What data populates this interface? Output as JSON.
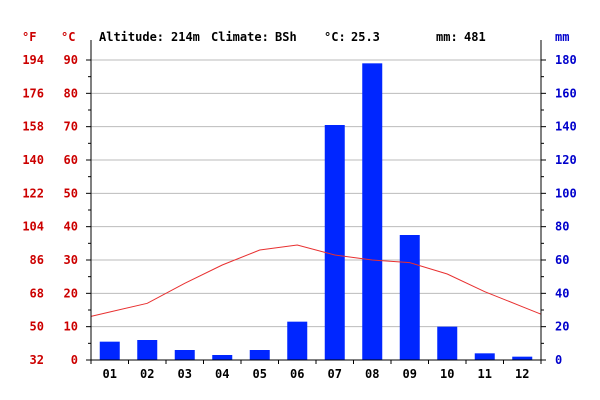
{
  "header": {
    "altitude_label": "Altitude:",
    "altitude_value": "214m",
    "climate_label": "Climate:",
    "climate_value": "BSh",
    "temp_label": "°C:",
    "temp_value": "25.3",
    "precip_label": "mm:",
    "precip_value": "481"
  },
  "colors": {
    "temperature": "#e83030",
    "precipitation": "#0026ff",
    "left_axis": "#cc0000",
    "right_axis": "#0000cc",
    "grid": "#bbbbbb"
  },
  "chart_data": {
    "type": "bar",
    "categories": [
      "01",
      "02",
      "03",
      "04",
      "05",
      "06",
      "07",
      "08",
      "09",
      "10",
      "11",
      "12"
    ],
    "series": [
      {
        "type": "bar",
        "axis": "right",
        "values": [
          11,
          12,
          6,
          3,
          6,
          23,
          141,
          178,
          75,
          20,
          4,
          2
        ]
      },
      {
        "type": "line",
        "axis": "left",
        "values": [
          14.4,
          17,
          23,
          28.5,
          33,
          34.5,
          31.5,
          30,
          29.2,
          25.8,
          20.5,
          16
        ]
      }
    ],
    "left_axis": {
      "unit_f": "°F",
      "unit_c": "°C",
      "ticks_c": [
        "0",
        "10",
        "20",
        "30",
        "40",
        "50",
        "60",
        "70",
        "80",
        "90"
      ],
      "ticks_f": [
        "32",
        "50",
        "68",
        "86",
        "104",
        "122",
        "140",
        "158",
        "176",
        "194"
      ],
      "ylim": [
        0,
        90
      ]
    },
    "right_axis": {
      "unit": "mm",
      "ticks": [
        "0",
        "20",
        "40",
        "60",
        "80",
        "100",
        "120",
        "140",
        "160",
        "180"
      ],
      "ylim": [
        0,
        180
      ]
    },
    "grid": true
  }
}
